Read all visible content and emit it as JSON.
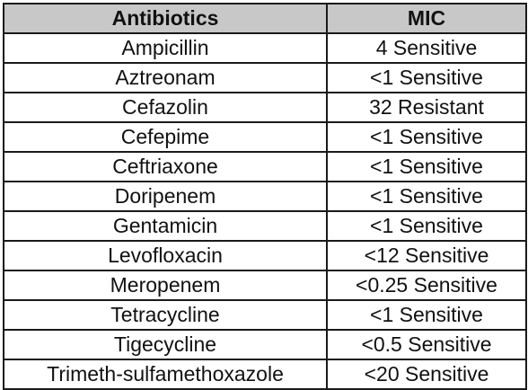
{
  "table": {
    "headers": [
      "Antibiotics",
      "MIC"
    ],
    "rows": [
      [
        "Ampicillin",
        "4 Sensitive"
      ],
      [
        "Aztreonam",
        "<1 Sensitive"
      ],
      [
        "Cefazolin",
        "32 Resistant"
      ],
      [
        "Cefepime",
        "<1 Sensitive"
      ],
      [
        "Ceftriaxone",
        "<1 Sensitive"
      ],
      [
        "Doripenem",
        "<1 Sensitive"
      ],
      [
        "Gentamicin",
        "<1 Sensitive"
      ],
      [
        "Levofloxacin",
        "<12 Sensitive"
      ],
      [
        "Meropenem",
        "<0.25 Sensitive"
      ],
      [
        "Tetracycline",
        "<1 Sensitive"
      ],
      [
        "Tigecycline",
        "<0.5 Sensitive"
      ],
      [
        "Trimeth-sulfamethoxazole",
        "<20 Sensitive"
      ]
    ]
  },
  "colors": {
    "header_background": "#c8c8c8",
    "border": "#1a1a1a",
    "text": "#111111"
  }
}
